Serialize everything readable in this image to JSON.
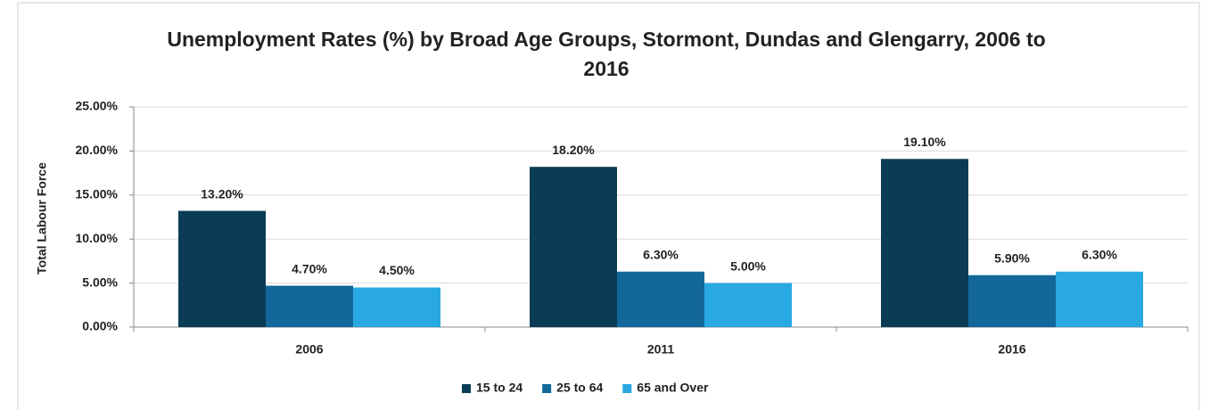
{
  "chart_data": {
    "type": "bar",
    "title": "Unemployment Rates (%) by Broad Age Groups, Stormont, Dundas and Glengarry, 2006 to 2016",
    "y_label": "Total Labour Force",
    "categories": [
      "2006",
      "2011",
      "2016"
    ],
    "series": [
      {
        "name": "15 to 24",
        "color": "#0b3c55",
        "values": [
          13.2,
          18.2,
          19.1
        ],
        "value_labels": [
          "13.20%",
          "18.20%",
          "19.10%"
        ]
      },
      {
        "name": "25 to 64",
        "color": "#13679a",
        "values": [
          4.7,
          6.3,
          5.9
        ],
        "value_labels": [
          "4.70%",
          "6.30%",
          "5.90%"
        ]
      },
      {
        "name": "65 and Over",
        "color": "#29a9e1",
        "values": [
          4.5,
          5.0,
          6.3
        ],
        "value_labels": [
          "4.50%",
          "5.00%",
          "6.30%"
        ]
      }
    ],
    "ylim": [
      0,
      25
    ],
    "yticks": [
      {
        "value": 0,
        "label": "0.00%"
      },
      {
        "value": 5,
        "label": "5.00%"
      },
      {
        "value": 10,
        "label": "10.00%"
      },
      {
        "value": 15,
        "label": "15.00%"
      },
      {
        "value": 20,
        "label": "20.00%"
      },
      {
        "value": 25,
        "label": "25.00%"
      }
    ],
    "grid": true,
    "legend": "bottom"
  }
}
